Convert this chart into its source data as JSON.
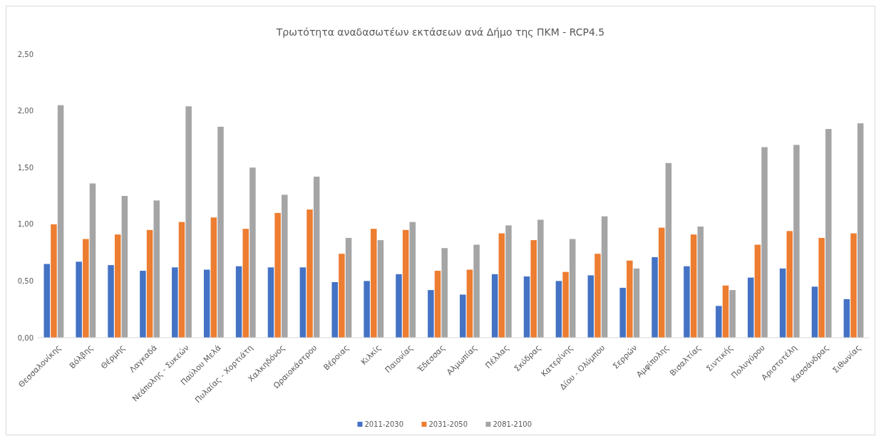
{
  "chart_data": {
    "type": "bar",
    "title": "Τρωτότητα αναδασωτέων εκτάσεων ανά Δήμο της ΠΚΜ - RCP4.5",
    "categories": [
      "Θεσσαλονίκης",
      "Βόλβης",
      "Θέρμης",
      "Λαγκαδά",
      "Νεάπολης - Συκεών",
      "Παύλου Μελά",
      "Πυλαίας - Χορτιάτη",
      "Χαλκηδόνος",
      "Ωραιοκάστρου",
      "Βέροιας",
      "Κιλκίς",
      "Παιονίας",
      "Έδεσσας",
      "Αλμωπίας",
      "Πέλλας",
      "Σκύδρας",
      "Κατερίνης",
      "Δίου - Ολύμπου",
      "Σερρών",
      "Αμφίπολης",
      "Βισαλτίας",
      "Σιντικής",
      "Πολυγύρου",
      "Αριστοτέλη",
      "Κασσάνδρας",
      "Σιθωνίας"
    ],
    "series": [
      {
        "name": "2011-2030",
        "color": "#4472c4",
        "values": [
          0.65,
          0.67,
          0.64,
          0.59,
          0.62,
          0.6,
          0.63,
          0.62,
          0.62,
          0.49,
          0.5,
          0.56,
          0.42,
          0.38,
          0.56,
          0.54,
          0.5,
          0.55,
          0.44,
          0.71,
          0.63,
          0.28,
          0.53,
          0.61,
          0.45,
          0.34
        ]
      },
      {
        "name": "2031-2050",
        "color": "#ed7d31",
        "values": [
          1.0,
          0.87,
          0.91,
          0.95,
          1.02,
          1.06,
          0.96,
          1.1,
          1.13,
          0.74,
          0.96,
          0.95,
          0.59,
          0.6,
          0.92,
          0.86,
          0.58,
          0.74,
          0.68,
          0.97,
          0.91,
          0.46,
          0.82,
          0.94,
          0.88,
          0.92
        ]
      },
      {
        "name": "2081-2100",
        "color": "#a5a5a5",
        "values": [
          2.05,
          1.36,
          1.25,
          1.21,
          2.04,
          1.86,
          1.5,
          1.26,
          1.42,
          0.88,
          0.86,
          1.02,
          0.79,
          0.82,
          0.99,
          1.04,
          0.87,
          1.07,
          0.61,
          1.54,
          0.98,
          0.42,
          1.68,
          1.7,
          1.84,
          1.89
        ]
      }
    ],
    "ylim": [
      0,
      2.5
    ],
    "yticks": [
      {
        "value": 0,
        "label": "0,00"
      },
      {
        "value": 0.5,
        "label": "0,50"
      },
      {
        "value": 1,
        "label": "1,00"
      },
      {
        "value": 1.5,
        "label": "1,50"
      },
      {
        "value": 2,
        "label": "2,00"
      },
      {
        "value": 2.5,
        "label": "2,50"
      }
    ],
    "grid": false,
    "legend": "bottom"
  }
}
